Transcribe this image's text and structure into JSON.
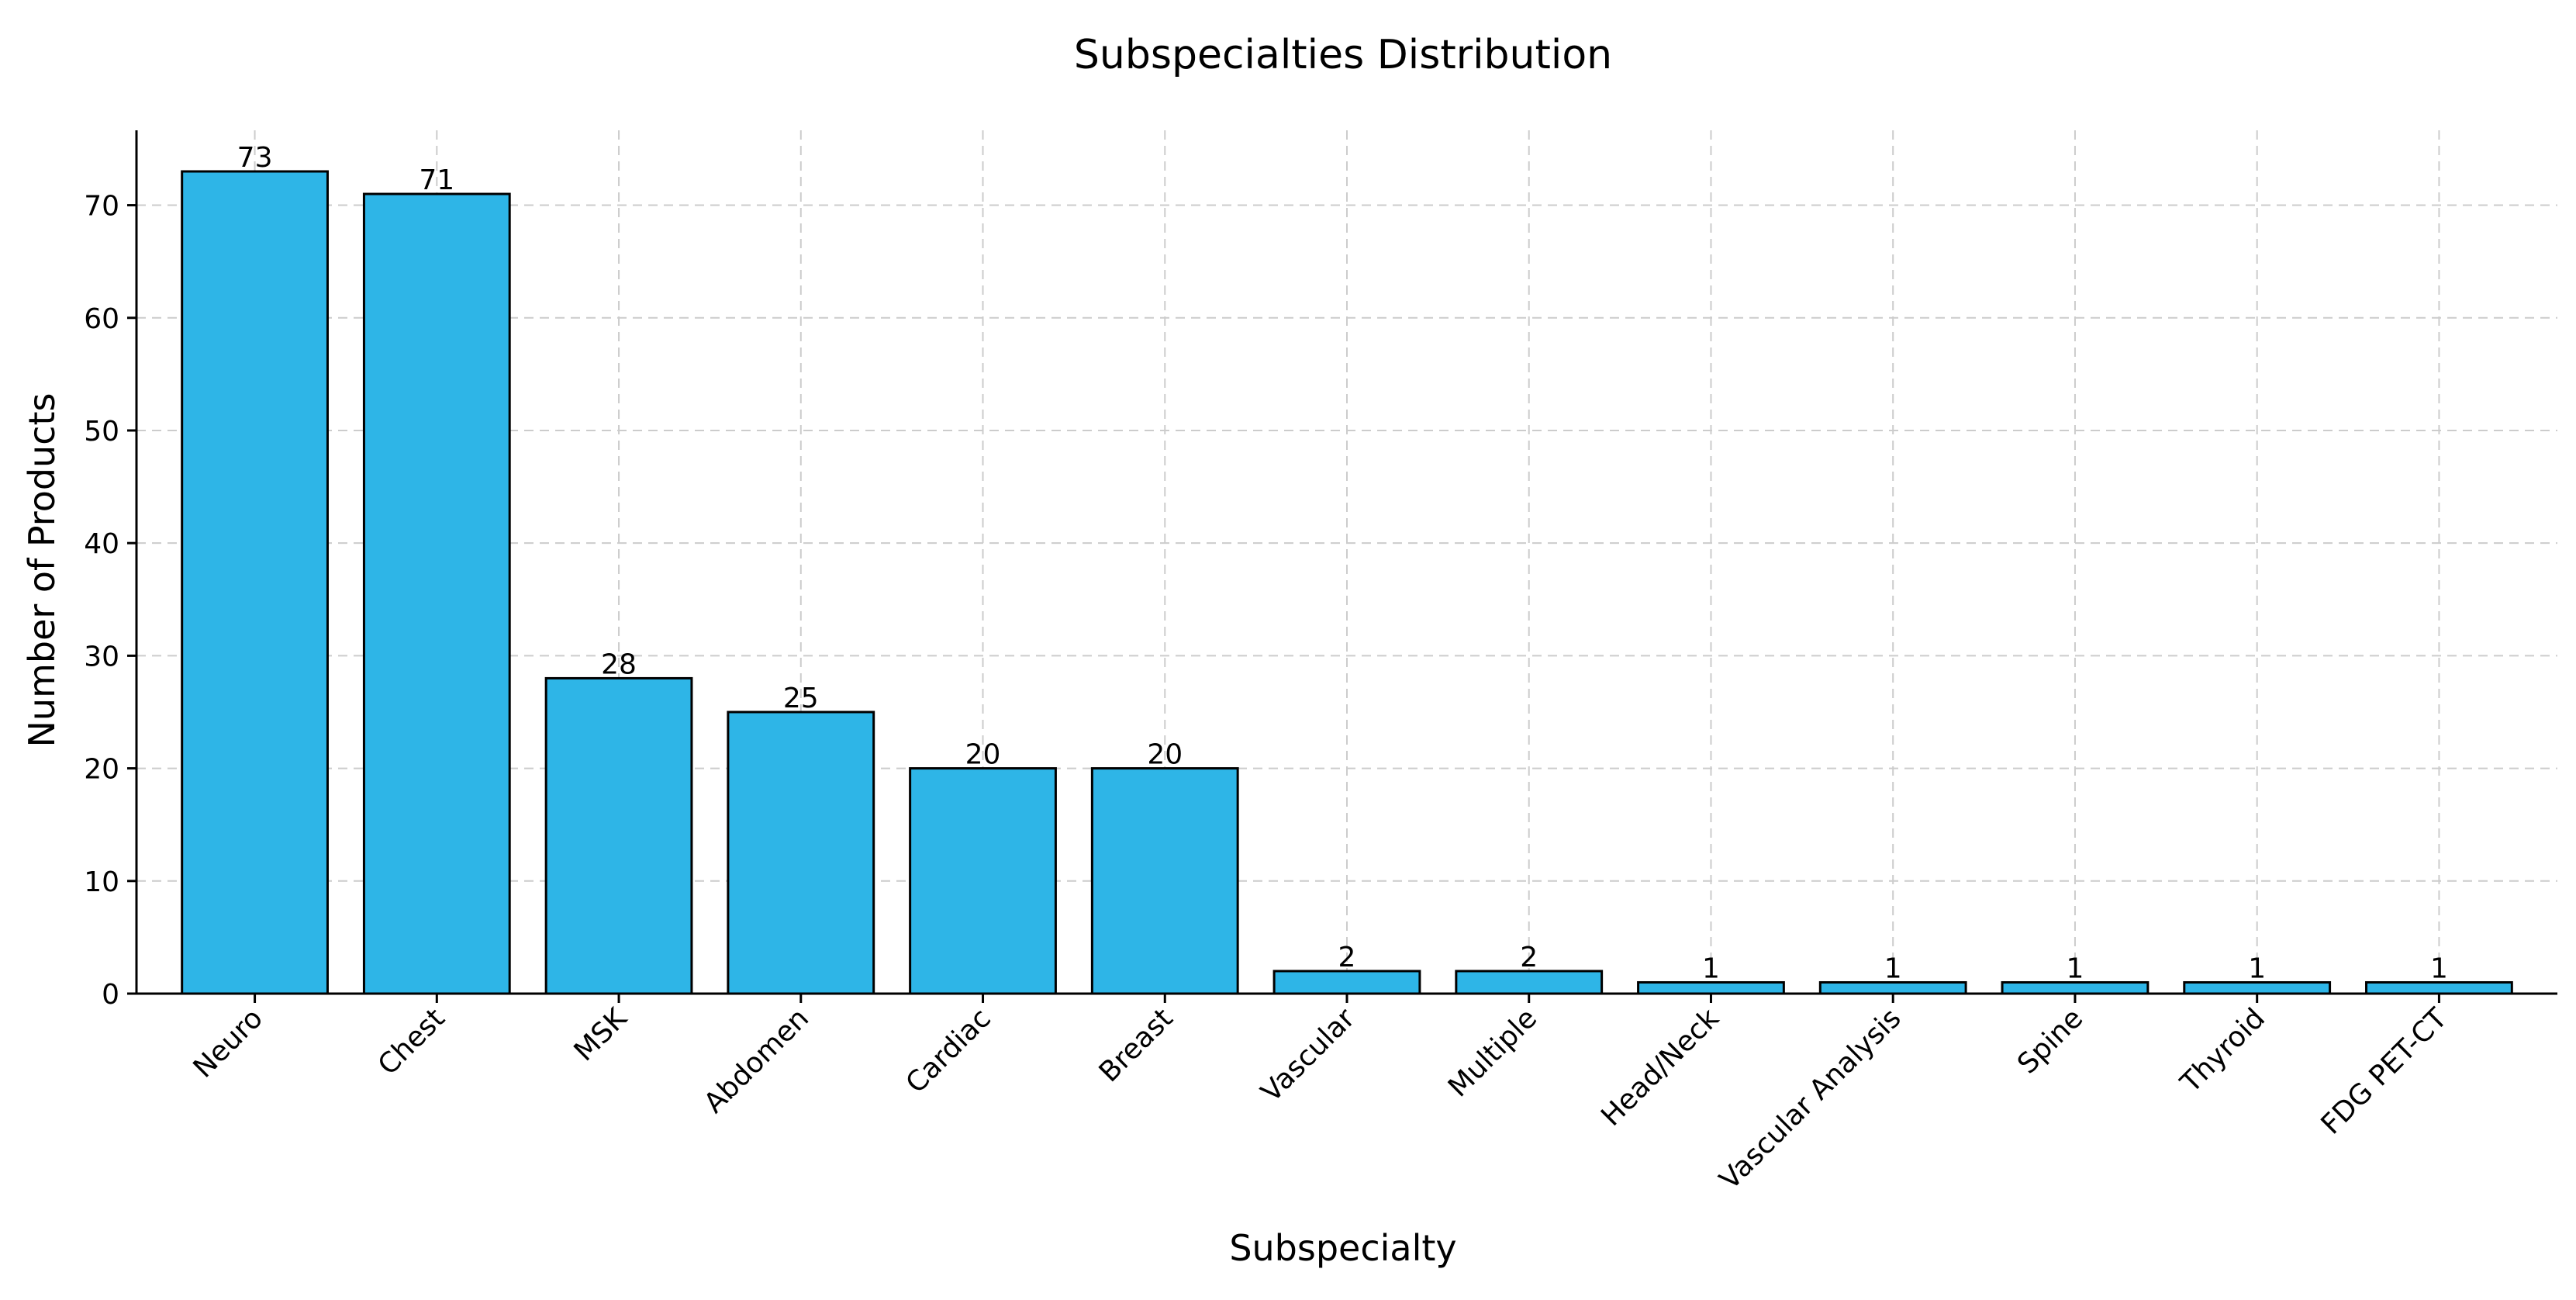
{
  "chart_data": {
    "type": "bar",
    "title": "Subspecialties Distribution",
    "xlabel": "Subspecialty",
    "ylabel": "Number of Products",
    "categories": [
      "Neuro",
      "Chest",
      "MSK",
      "Abdomen",
      "Cardiac",
      "Breast",
      "Vascular",
      "Multiple",
      "Head/Neck",
      "Vascular Analysis",
      "Spine",
      "Thyroid",
      "FDG PET-CT"
    ],
    "values": [
      73,
      71,
      28,
      25,
      20,
      20,
      2,
      2,
      1,
      1,
      1,
      1,
      1
    ],
    "ylim": [
      0,
      76.65
    ],
    "yticks": [
      0,
      10,
      20,
      30,
      40,
      50,
      60,
      70
    ],
    "grid": true,
    "bar_color": "#2eb5e7",
    "edge_color": "#000000"
  }
}
